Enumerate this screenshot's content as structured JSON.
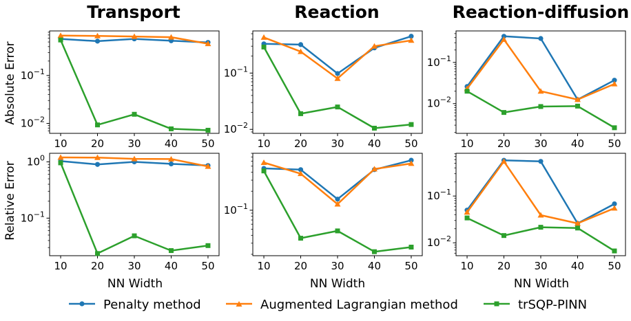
{
  "column_titles": [
    "Transport",
    "Reaction",
    "Reaction-diffusion"
  ],
  "row_ylabels": [
    "Absolute Error",
    "Relative Error"
  ],
  "xlabel": "NN Width",
  "legend": {
    "placement": "bottom-center",
    "items": [
      {
        "label": "Penalty method",
        "color": "#1f77b4",
        "marker": "circle"
      },
      {
        "label": "Augmented Lagrangian method",
        "color": "#ff7f0e",
        "marker": "triangle"
      },
      {
        "label": "trSQP-PINN",
        "color": "#2ca02c",
        "marker": "square"
      }
    ]
  },
  "chart_data": [
    {
      "type": "line",
      "row": 0,
      "col": 0,
      "yscale": "log",
      "x": [
        10,
        20,
        30,
        40,
        50
      ],
      "xticks": [
        10,
        20,
        30,
        40,
        50
      ],
      "ylim": [
        0.0062,
        0.85
      ],
      "yticks": [
        {
          "value": 0.1,
          "base": "10",
          "exp": "−1"
        },
        {
          "value": 0.01,
          "base": "10",
          "exp": "−2"
        }
      ],
      "series": [
        {
          "name": "Penalty method",
          "values": [
            0.58,
            0.52,
            0.58,
            0.53,
            0.49
          ]
        },
        {
          "name": "Augmented Lagrangian method",
          "values": [
            0.68,
            0.67,
            0.65,
            0.63,
            0.46
          ]
        },
        {
          "name": "trSQP-PINN",
          "values": [
            0.55,
            0.0093,
            0.0155,
            0.0077,
            0.0072
          ]
        }
      ]
    },
    {
      "type": "line",
      "row": 0,
      "col": 1,
      "yscale": "log",
      "x": [
        10,
        20,
        30,
        40,
        50
      ],
      "xticks": [
        10,
        20,
        30,
        40,
        50
      ],
      "ylim": [
        0.0085,
        0.56
      ],
      "yticks": [
        {
          "value": 0.1,
          "base": "10",
          "exp": "−1"
        },
        {
          "value": 0.01,
          "base": "10",
          "exp": "−2"
        }
      ],
      "series": [
        {
          "name": "Penalty method",
          "values": [
            0.33,
            0.32,
            0.098,
            0.28,
            0.45
          ]
        },
        {
          "name": "Augmented Lagrangian method",
          "values": [
            0.43,
            0.24,
            0.08,
            0.3,
            0.38
          ]
        },
        {
          "name": "trSQP-PINN",
          "values": [
            0.29,
            0.019,
            0.025,
            0.0105,
            0.0122
          ]
        }
      ]
    },
    {
      "type": "line",
      "row": 0,
      "col": 2,
      "yscale": "log",
      "x": [
        10,
        20,
        30,
        40,
        50
      ],
      "xticks": [
        10,
        20,
        30,
        40,
        50
      ],
      "ylim": [
        0.0019,
        0.58
      ],
      "yticks": [
        {
          "value": 0.1,
          "base": "10",
          "exp": "−1"
        },
        {
          "value": 0.01,
          "base": "10",
          "exp": "−2"
        }
      ],
      "series": [
        {
          "name": "Penalty method",
          "values": [
            0.026,
            0.43,
            0.38,
            0.0125,
            0.037
          ]
        },
        {
          "name": "Augmented Lagrangian method",
          "values": [
            0.023,
            0.36,
            0.02,
            0.0125,
            0.03
          ]
        },
        {
          "name": "trSQP-PINN",
          "values": [
            0.02,
            0.0061,
            0.0085,
            0.0087,
            0.0026
          ]
        }
      ]
    },
    {
      "type": "line",
      "row": 1,
      "col": 0,
      "yscale": "log",
      "x": [
        10,
        20,
        30,
        40,
        50
      ],
      "xticks": [
        10,
        20,
        30,
        40,
        50
      ],
      "ylim": [
        0.0215,
        1.42
      ],
      "yticks": [
        {
          "value": 1,
          "base": "10",
          "exp": "0"
        },
        {
          "value": 0.1,
          "base": "10",
          "exp": "−1"
        }
      ],
      "series": [
        {
          "name": "Penalty method",
          "values": [
            1.03,
            0.9,
            1.0,
            0.92,
            0.86
          ]
        },
        {
          "name": "Augmented Lagrangian method",
          "values": [
            1.2,
            1.19,
            1.13,
            1.12,
            0.83
          ]
        },
        {
          "name": "trSQP-PINN",
          "values": [
            0.96,
            0.0235,
            0.0485,
            0.0265,
            0.0325
          ]
        }
      ]
    },
    {
      "type": "line",
      "row": 1,
      "col": 1,
      "yscale": "log",
      "x": [
        10,
        20,
        30,
        40,
        50
      ],
      "xticks": [
        10,
        20,
        30,
        40,
        50
      ],
      "ylim": [
        0.019,
        0.8
      ],
      "yticks": [
        {
          "value": 0.1,
          "base": "10",
          "exp": "−1"
        }
      ],
      "series": [
        {
          "name": "Penalty method",
          "values": [
            0.46,
            0.44,
            0.15,
            0.44,
            0.62
          ]
        },
        {
          "name": "Augmented Lagrangian method",
          "values": [
            0.57,
            0.38,
            0.125,
            0.45,
            0.55
          ]
        },
        {
          "name": "trSQP-PINN",
          "values": [
            0.42,
            0.036,
            0.047,
            0.022,
            0.026
          ]
        }
      ]
    },
    {
      "type": "line",
      "row": 1,
      "col": 2,
      "yscale": "log",
      "x": [
        10,
        20,
        30,
        40,
        50
      ],
      "xticks": [
        10,
        20,
        30,
        40,
        50
      ],
      "ylim": [
        0.0053,
        0.82
      ],
      "yticks": [
        {
          "value": 0.1,
          "base": "10",
          "exp": "−1"
        },
        {
          "value": 0.01,
          "base": "10",
          "exp": "−2"
        }
      ],
      "series": [
        {
          "name": "Penalty method",
          "values": [
            0.05,
            0.58,
            0.55,
            0.026,
            0.068
          ]
        },
        {
          "name": "Augmented Lagrangian method",
          "values": [
            0.045,
            0.55,
            0.039,
            0.026,
            0.055
          ]
        },
        {
          "name": "trSQP-PINN",
          "values": [
            0.034,
            0.0143,
            0.0215,
            0.0207,
            0.0067
          ]
        }
      ]
    }
  ]
}
